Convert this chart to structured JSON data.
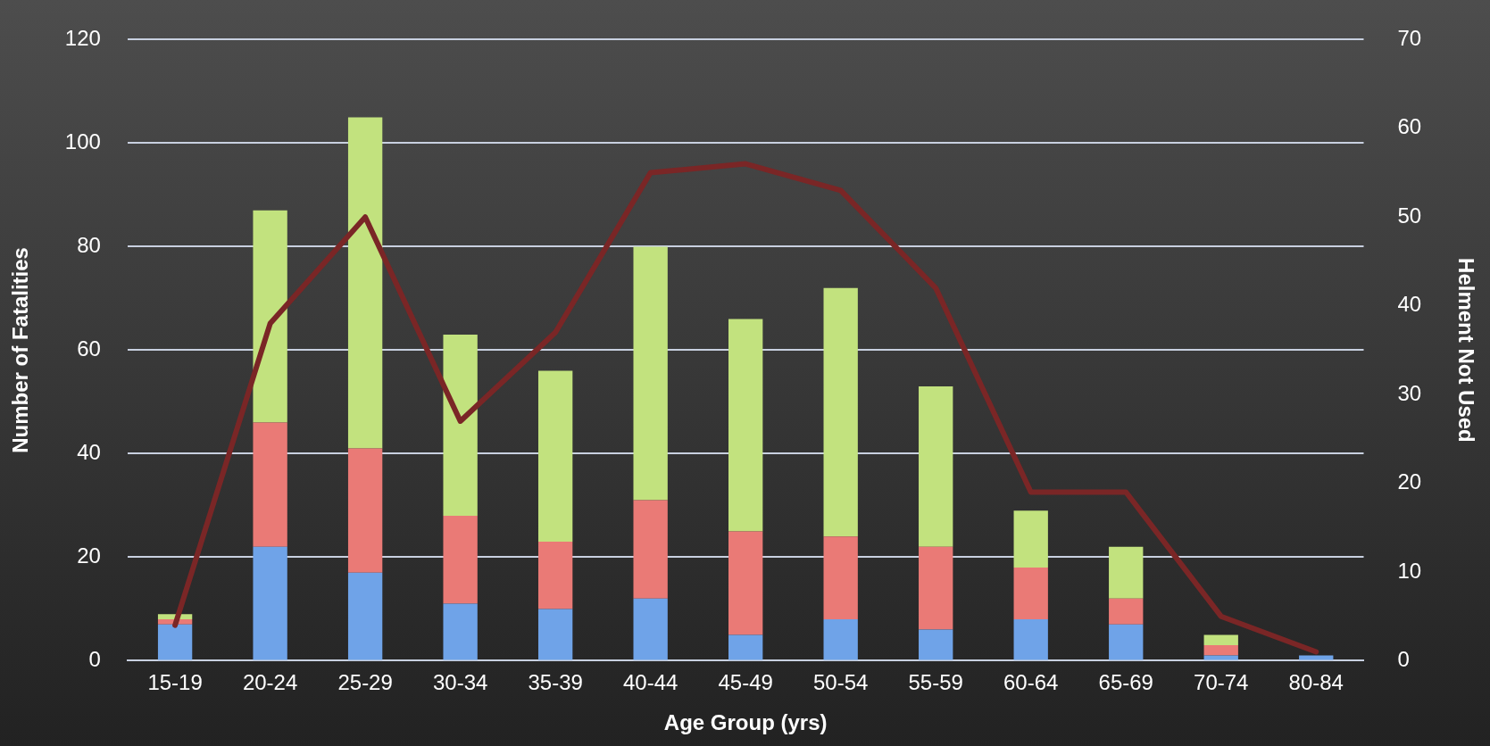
{
  "chart_data": {
    "type": "bar",
    "stacked": true,
    "xlabel": "Age Group (yrs)",
    "ylabel": "Number of Fatalities",
    "y2label": "Helment Not Used",
    "categories": [
      "15-19",
      "20-24",
      "25-29",
      "30-34",
      "35-39",
      "40-44",
      "45-49",
      "50-54",
      "55-59",
      "60-64",
      "65-69",
      "70-74",
      "80-84"
    ],
    "series": [
      {
        "color": "#6fa3e8",
        "values": [
          7,
          22,
          17,
          11,
          10,
          12,
          5,
          8,
          6,
          8,
          7,
          1,
          1
        ]
      },
      {
        "color": "#ea7a76",
        "values": [
          1,
          24,
          24,
          17,
          13,
          19,
          20,
          16,
          16,
          10,
          5,
          2,
          0
        ]
      },
      {
        "color": "#c2e27e",
        "values": [
          1,
          41,
          64,
          35,
          33,
          49,
          41,
          48,
          31,
          11,
          10,
          2,
          0
        ]
      },
      {
        "type": "line",
        "axis": "y2",
        "color": "#7a2626",
        "values": [
          4,
          38,
          50,
          27,
          37,
          55,
          56,
          53,
          42,
          19,
          19,
          5,
          1
        ]
      }
    ],
    "ylim": [
      0,
      120
    ],
    "yticks": [
      0,
      20,
      40,
      60,
      80,
      100,
      120
    ],
    "y2lim": [
      0,
      70
    ],
    "y2ticks": [
      0,
      10,
      20,
      30,
      40,
      50,
      60,
      70
    ],
    "grid": "y",
    "legend": false
  }
}
